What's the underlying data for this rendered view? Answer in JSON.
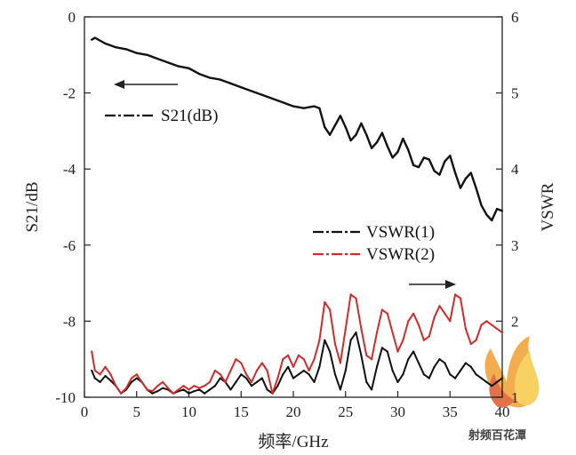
{
  "chart_data": {
    "type": "line",
    "xlabel": "频率/GHz",
    "ylabel_left": "S21/dB",
    "ylabel_right": "VSWR",
    "xlim": [
      0,
      40
    ],
    "ylim_left": [
      -10,
      0
    ],
    "ylim_right": [
      1,
      6
    ],
    "x_ticks": [
      "0",
      "5",
      "10",
      "15",
      "20",
      "25",
      "30",
      "35",
      "40"
    ],
    "y_left_ticks": [
      "0",
      "-2",
      "-4",
      "-6",
      "-8",
      "-10"
    ],
    "y_right_ticks": [
      "6",
      "5",
      "4",
      "3",
      "2",
      "1"
    ],
    "grid": false,
    "series": [
      {
        "name": "S21(dB)",
        "axis": "left",
        "color": "#111111",
        "x": [
          0.7,
          1,
          2,
          3,
          4,
          5,
          6,
          7,
          8,
          9,
          10,
          11,
          12,
          13,
          14,
          15,
          16,
          17,
          18,
          19,
          20,
          21,
          22,
          22.5,
          23,
          23.5,
          24,
          24.5,
          25,
          25.5,
          26,
          26.5,
          27,
          27.5,
          28,
          28.5,
          29,
          29.5,
          30,
          30.5,
          31,
          31.5,
          32,
          32.5,
          33,
          33.5,
          34,
          34.5,
          35,
          35.5,
          36,
          36.5,
          37,
          37.5,
          38,
          38.5,
          39,
          39.5,
          40
        ],
        "values": [
          -0.6,
          -0.55,
          -0.7,
          -0.8,
          -0.85,
          -0.95,
          -1.0,
          -1.1,
          -1.2,
          -1.3,
          -1.35,
          -1.5,
          -1.6,
          -1.65,
          -1.75,
          -1.85,
          -1.95,
          -2.05,
          -2.15,
          -2.25,
          -2.35,
          -2.4,
          -2.35,
          -2.4,
          -2.9,
          -3.1,
          -2.85,
          -2.6,
          -2.9,
          -3.25,
          -3.1,
          -2.8,
          -3.1,
          -3.45,
          -3.3,
          -3.05,
          -3.4,
          -3.7,
          -3.55,
          -3.2,
          -3.5,
          -3.9,
          -3.95,
          -3.7,
          -3.75,
          -4.05,
          -4.15,
          -3.8,
          -3.65,
          -4.1,
          -4.5,
          -4.25,
          -4.1,
          -4.5,
          -4.95,
          -5.2,
          -5.35,
          -5.05,
          -5.1
        ]
      },
      {
        "name": "VSWR(1)",
        "axis": "right",
        "color": "#111111",
        "x": [
          0.7,
          1,
          1.5,
          2,
          2.5,
          3,
          3.5,
          4,
          4.5,
          5,
          5.5,
          6,
          6.5,
          7,
          7.5,
          8,
          8.5,
          9,
          9.5,
          10,
          10.5,
          11,
          11.5,
          12,
          12.5,
          13,
          13.5,
          14,
          14.5,
          15,
          15.5,
          16,
          16.5,
          17,
          17.5,
          18,
          18.5,
          19,
          19.5,
          20,
          20.5,
          21,
          21.5,
          22,
          22.5,
          23,
          23.5,
          24,
          24.5,
          25,
          25.5,
          26,
          26.5,
          27,
          27.5,
          28,
          28.5,
          29,
          29.5,
          30,
          30.5,
          31,
          31.5,
          32,
          32.5,
          33,
          33.5,
          34,
          34.5,
          35,
          35.5,
          36,
          36.5,
          37,
          37.5,
          38,
          38.5,
          39,
          39.5,
          40
        ],
        "values": [
          1.35,
          1.25,
          1.2,
          1.28,
          1.22,
          1.15,
          1.05,
          1.1,
          1.2,
          1.25,
          1.2,
          1.1,
          1.05,
          1.08,
          1.12,
          1.1,
          1.05,
          1.08,
          1.1,
          1.05,
          1.08,
          1.1,
          1.05,
          1.1,
          1.15,
          1.25,
          1.2,
          1.1,
          1.2,
          1.3,
          1.25,
          1.15,
          1.2,
          1.25,
          1.1,
          1.05,
          1.15,
          1.3,
          1.4,
          1.25,
          1.3,
          1.35,
          1.3,
          1.2,
          1.4,
          1.75,
          1.6,
          1.3,
          1.1,
          1.35,
          1.75,
          1.85,
          1.55,
          1.2,
          1.1,
          1.4,
          1.65,
          1.6,
          1.35,
          1.2,
          1.3,
          1.5,
          1.6,
          1.45,
          1.3,
          1.25,
          1.4,
          1.5,
          1.45,
          1.3,
          1.25,
          1.35,
          1.45,
          1.4,
          1.3,
          1.25,
          1.2,
          1.15,
          1.2,
          1.25
        ]
      },
      {
        "name": "VSWR(2)",
        "axis": "right",
        "color": "#d42a2a",
        "x": [
          0.7,
          1,
          1.5,
          2,
          2.5,
          3,
          3.5,
          4,
          4.5,
          5,
          5.5,
          6,
          6.5,
          7,
          7.5,
          8,
          8.5,
          9,
          9.5,
          10,
          10.5,
          11,
          11.5,
          12,
          12.5,
          13,
          13.5,
          14,
          14.5,
          15,
          15.5,
          16,
          16.5,
          17,
          17.5,
          18,
          18.5,
          19,
          19.5,
          20,
          20.5,
          21,
          21.5,
          22,
          22.5,
          23,
          23.5,
          24,
          24.5,
          25,
          25.5,
          26,
          26.5,
          27,
          27.5,
          28,
          28.5,
          29,
          29.5,
          30,
          30.5,
          31,
          31.5,
          32,
          32.5,
          33,
          33.5,
          34,
          34.5,
          35,
          35.5,
          36,
          36.5,
          37,
          37.5,
          38,
          38.5,
          39,
          39.5,
          40
        ],
        "values": [
          1.6,
          1.35,
          1.3,
          1.4,
          1.3,
          1.15,
          1.05,
          1.12,
          1.25,
          1.3,
          1.2,
          1.1,
          1.08,
          1.15,
          1.2,
          1.12,
          1.05,
          1.1,
          1.15,
          1.1,
          1.15,
          1.12,
          1.15,
          1.2,
          1.35,
          1.3,
          1.2,
          1.35,
          1.5,
          1.45,
          1.3,
          1.2,
          1.35,
          1.45,
          1.35,
          1.05,
          1.25,
          1.5,
          1.55,
          1.4,
          1.55,
          1.5,
          1.35,
          1.5,
          1.75,
          2.25,
          2.15,
          1.7,
          1.45,
          1.9,
          2.35,
          2.3,
          1.9,
          1.55,
          1.5,
          1.85,
          2.15,
          2.1,
          1.85,
          1.6,
          1.75,
          2.0,
          2.1,
          1.95,
          1.75,
          1.8,
          2.05,
          2.2,
          2.1,
          2.0,
          2.35,
          2.3,
          1.9,
          1.7,
          1.75,
          1.95,
          2.0,
          1.95,
          1.9,
          1.85
        ]
      }
    ],
    "legend": [
      {
        "label": "S21(dB)",
        "color": "#111111"
      },
      {
        "label": "VSWR(1)",
        "color": "#111111"
      },
      {
        "label": "VSWR(2)",
        "color": "#d42a2a"
      }
    ],
    "annotations": [
      {
        "type": "arrow",
        "direction": "left",
        "refers_to": "S21(dB)"
      },
      {
        "type": "arrow",
        "direction": "right",
        "refers_to": "VSWR"
      }
    ]
  },
  "watermark": {
    "text": "射频百花潭",
    "kind": "logo"
  }
}
